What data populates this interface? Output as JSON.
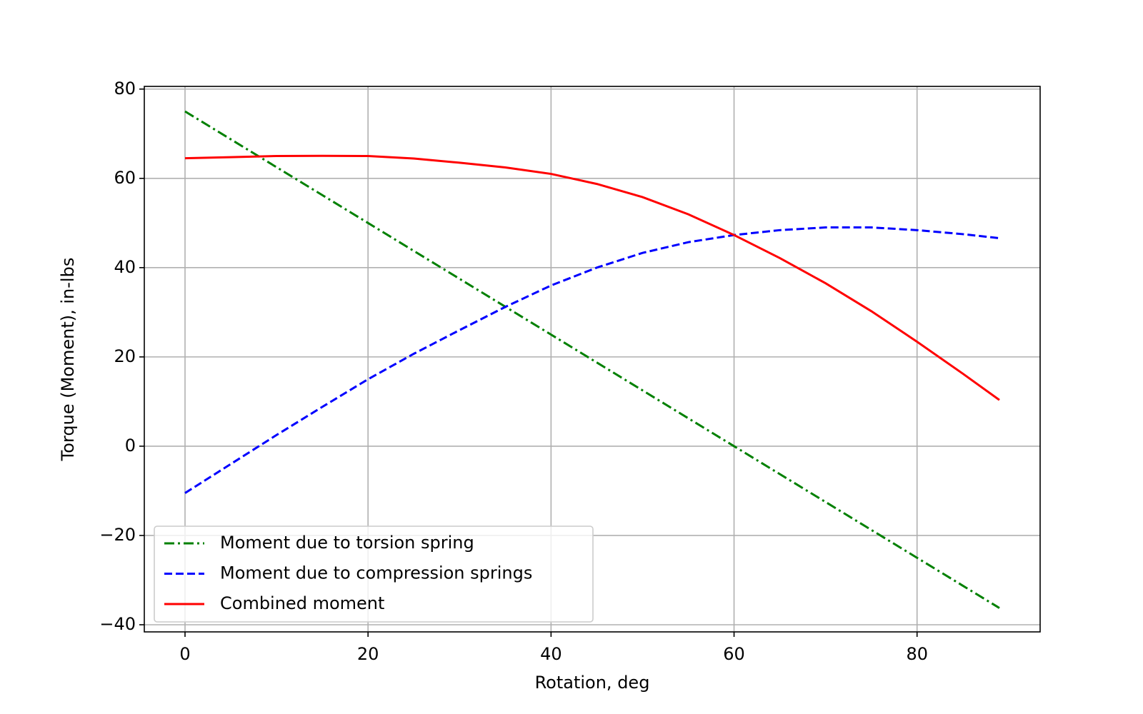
{
  "chart_data": {
    "type": "line",
    "x_label": "Rotation, deg",
    "y_label": "Torque (Moment), in-lbs",
    "x": [
      0,
      5,
      10,
      15,
      20,
      25,
      30,
      35,
      40,
      45,
      50,
      55,
      60,
      65,
      70,
      75,
      80,
      85,
      89
    ],
    "series": [
      {
        "name": "Moment due to torsion spring",
        "color": "#008000",
        "style": "dashdot",
        "values": [
          75,
          68.75,
          62.5,
          56.25,
          50,
          43.75,
          37.5,
          31.25,
          25,
          18.75,
          12.5,
          6.25,
          0,
          -6.25,
          -12.5,
          -18.75,
          -25,
          -31.25,
          -36.25
        ]
      },
      {
        "name": "Moment due to compression springs",
        "color": "#0000ff",
        "style": "dashed",
        "values": [
          -10.5,
          -4,
          2.5,
          8.8,
          15,
          20.7,
          26,
          31.2,
          36,
          40,
          43.3,
          45.7,
          47.3,
          48.4,
          49,
          49,
          48.4,
          47.5,
          46.6
        ]
      },
      {
        "name": "Combined moment",
        "color": "#ff0000",
        "style": "solid",
        "values": [
          64.5,
          64.75,
          65,
          65.05,
          65,
          64.45,
          63.5,
          62.45,
          61,
          58.75,
          55.8,
          51.95,
          47.3,
          42.15,
          36.5,
          30.25,
          23.4,
          16.25,
          10.35
        ]
      }
    ],
    "xlim": [
      -4.45,
      93.45
    ],
    "ylim": [
      -41.6,
      80.6
    ],
    "xticks": [
      0,
      20,
      40,
      60,
      80
    ],
    "yticks": [
      {
        "value": -40,
        "label": "−40"
      },
      {
        "value": -20,
        "label": "−20"
      },
      0,
      20,
      40,
      60,
      80
    ],
    "grid": true,
    "legend": "lower-left"
  }
}
